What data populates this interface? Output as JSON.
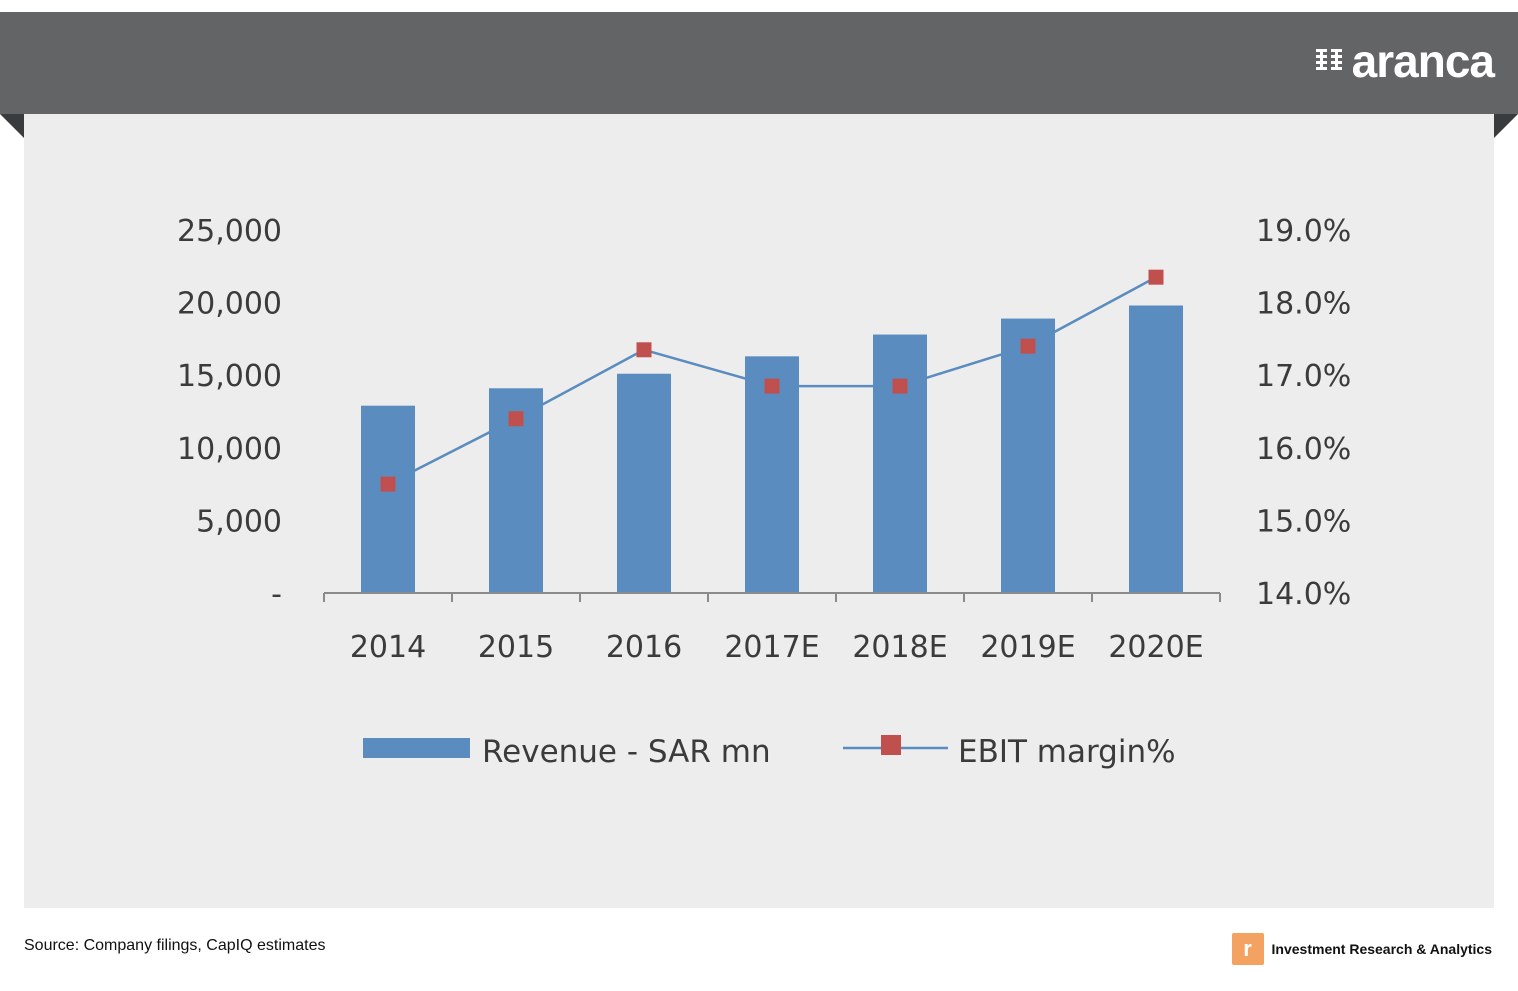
{
  "header": {
    "brand_name": "aranca",
    "brand_icon": "aranca-logo-icon"
  },
  "footer": {
    "source": "Source: Company filings, CapIQ estimates",
    "tagline": "Investment Research & Analytics",
    "tagline_icon": "aranca-badge-icon"
  },
  "colors": {
    "header": "#636466",
    "card": "#ededed",
    "bar": "#5b8cc0",
    "line": "#5b8cc0",
    "marker": "#c0504d",
    "footer_icon": "#f4a261"
  },
  "chart_data": {
    "type": "bar",
    "categories": [
      "2014",
      "2015",
      "2016",
      "2017E",
      "2018E",
      "2019E",
      "2020E"
    ],
    "series": [
      {
        "name": "Revenue - SAR mn",
        "type": "bar",
        "axis": "left",
        "values": [
          12900,
          14100,
          15100,
          16300,
          17800,
          18900,
          19800
        ]
      },
      {
        "name": "EBIT margin%",
        "type": "line",
        "axis": "right",
        "values": [
          15.5,
          16.4,
          17.35,
          16.85,
          16.85,
          17.4,
          18.35
        ]
      }
    ],
    "y_left": {
      "ticks": [
        0,
        5000,
        10000,
        15000,
        20000,
        25000
      ],
      "tick_labels": [
        "-",
        "5,000",
        "10,000",
        "15,000",
        "20,000",
        "25,000"
      ],
      "ylim": [
        0,
        25000
      ]
    },
    "y_right": {
      "ticks": [
        14,
        15,
        16,
        17,
        18,
        19
      ],
      "tick_labels": [
        "14.0%",
        "15.0%",
        "16.0%",
        "17.0%",
        "18.0%",
        "19.0%"
      ],
      "ylim": [
        14,
        19
      ]
    },
    "legend_position": "bottom",
    "grid": false
  }
}
